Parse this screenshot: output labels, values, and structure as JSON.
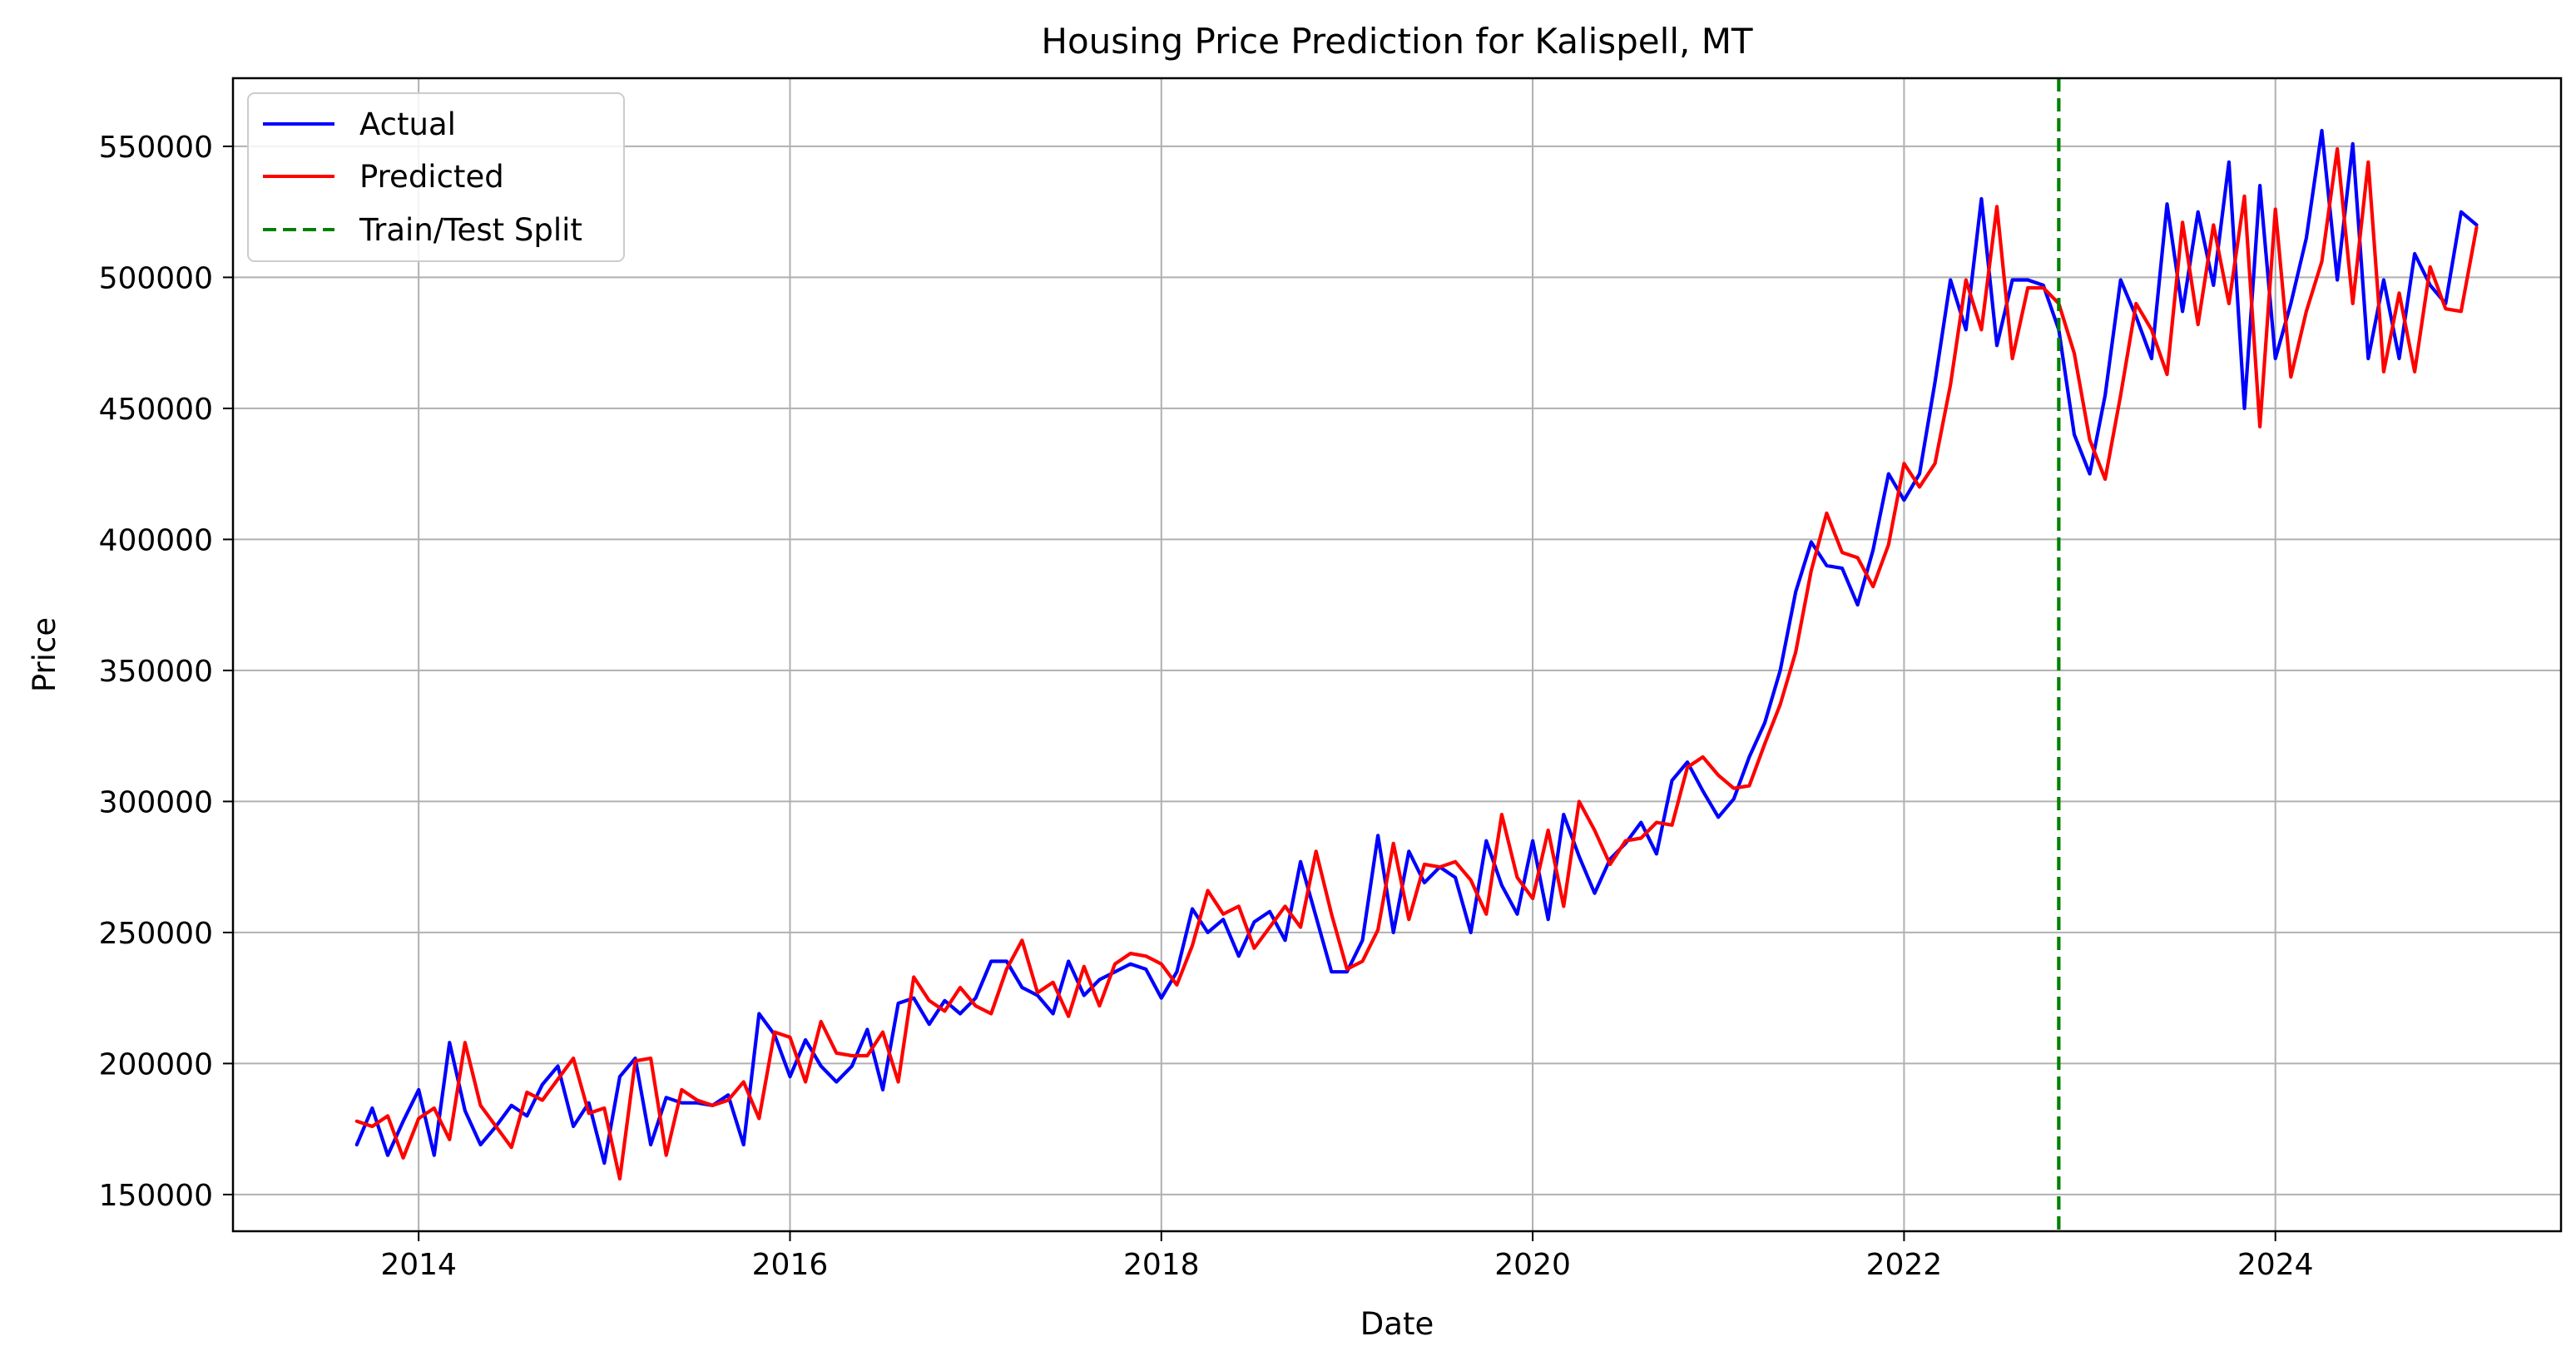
{
  "chart_data": {
    "type": "line",
    "title": "Housing Price Prediction for Kalispell, MT",
    "xlabel": "Date",
    "ylabel": "Price",
    "xlim": [
      "2013-01-01",
      "2025-07-15"
    ],
    "ylim": [
      136000,
      576000
    ],
    "grid": true,
    "legend_position": "top-left",
    "x_ticks": [
      "2014",
      "2016",
      "2018",
      "2020",
      "2022",
      "2024"
    ],
    "y_ticks": [
      150000,
      200000,
      250000,
      300000,
      350000,
      400000,
      450000,
      500000,
      550000
    ],
    "x": [
      "2013-09",
      "2013-10",
      "2013-11",
      "2013-12",
      "2014-01",
      "2014-02",
      "2014-03",
      "2014-04",
      "2014-05",
      "2014-06",
      "2014-07",
      "2014-08",
      "2014-09",
      "2014-10",
      "2014-11",
      "2014-12",
      "2015-01",
      "2015-02",
      "2015-03",
      "2015-04",
      "2015-05",
      "2015-06",
      "2015-07",
      "2015-08",
      "2015-09",
      "2015-10",
      "2015-11",
      "2015-12",
      "2016-01",
      "2016-02",
      "2016-03",
      "2016-04",
      "2016-05",
      "2016-06",
      "2016-07",
      "2016-08",
      "2016-09",
      "2016-10",
      "2016-11",
      "2016-12",
      "2017-01",
      "2017-02",
      "2017-03",
      "2017-04",
      "2017-05",
      "2017-06",
      "2017-07",
      "2017-08",
      "2017-09",
      "2017-10",
      "2017-11",
      "2017-12",
      "2018-01",
      "2018-02",
      "2018-03",
      "2018-04",
      "2018-05",
      "2018-06",
      "2018-07",
      "2018-08",
      "2018-09",
      "2018-10",
      "2018-11",
      "2018-12",
      "2019-01",
      "2019-02",
      "2019-03",
      "2019-04",
      "2019-05",
      "2019-06",
      "2019-07",
      "2019-08",
      "2019-09",
      "2019-10",
      "2019-11",
      "2019-12",
      "2020-01",
      "2020-02",
      "2020-03",
      "2020-04",
      "2020-05",
      "2020-06",
      "2020-07",
      "2020-08",
      "2020-09",
      "2020-10",
      "2020-11",
      "2020-12",
      "2021-01",
      "2021-02",
      "2021-03",
      "2021-04",
      "2021-05",
      "2021-06",
      "2021-07",
      "2021-08",
      "2021-09",
      "2021-10",
      "2021-11",
      "2021-12",
      "2022-01",
      "2022-02",
      "2022-03",
      "2022-04",
      "2022-05",
      "2022-06",
      "2022-07",
      "2022-08",
      "2022-09",
      "2022-10",
      "2022-11",
      "2022-12",
      "2023-01",
      "2023-02",
      "2023-03",
      "2023-04",
      "2023-05",
      "2023-06",
      "2023-07",
      "2023-08",
      "2023-09",
      "2023-10",
      "2023-11",
      "2023-12",
      "2024-01",
      "2024-02",
      "2024-03",
      "2024-04",
      "2024-05",
      "2024-06",
      "2024-07",
      "2024-08",
      "2024-09",
      "2024-10",
      "2024-11",
      "2024-12",
      "2025-01",
      "2025-02"
    ],
    "series": [
      {
        "name": "Actual",
        "color": "#0000ff",
        "values": [
          169000,
          183000,
          165000,
          178000,
          190000,
          165000,
          208000,
          182000,
          169000,
          176000,
          184000,
          180000,
          192000,
          199000,
          176000,
          185000,
          162000,
          195000,
          202000,
          169000,
          187000,
          185000,
          185000,
          184000,
          188000,
          169000,
          219000,
          211000,
          195000,
          209000,
          199000,
          193000,
          199000,
          213000,
          190000,
          223000,
          225000,
          215000,
          224000,
          219000,
          225000,
          239000,
          239000,
          229000,
          226000,
          219000,
          239000,
          226000,
          232000,
          235000,
          238000,
          236000,
          225000,
          235000,
          259000,
          250000,
          255000,
          241000,
          254000,
          258000,
          247000,
          277000,
          256000,
          235000,
          235000,
          247000,
          287000,
          250000,
          281000,
          269000,
          275000,
          271000,
          250000,
          285000,
          268000,
          257000,
          285000,
          255000,
          295000,
          279000,
          265000,
          278000,
          284000,
          292000,
          280000,
          308000,
          315000,
          304000,
          294000,
          301000,
          317000,
          330000,
          350000,
          380000,
          399000,
          390000,
          389000,
          375000,
          396000,
          425000,
          415000,
          425000,
          460000,
          499000,
          480000,
          530000,
          474000,
          499000,
          499000,
          497000,
          480000,
          440000,
          425000,
          455000,
          499000,
          485000,
          469000,
          528000,
          487000,
          525000,
          497000,
          544000,
          450000,
          535000,
          469000,
          490000,
          515000,
          556000,
          499000,
          551000,
          469000,
          499000,
          469000,
          509000,
          497000,
          490000,
          525000,
          520000
        ]
      },
      {
        "name": "Predicted",
        "color": "#ff0000",
        "values": [
          178000,
          176000,
          180000,
          164000,
          179000,
          183000,
          171000,
          208000,
          184000,
          176000,
          168000,
          189000,
          186000,
          194000,
          202000,
          181000,
          183000,
          156000,
          201000,
          202000,
          165000,
          190000,
          186000,
          184000,
          186000,
          193000,
          179000,
          212000,
          210000,
          193000,
          216000,
          204000,
          203000,
          203000,
          212000,
          193000,
          233000,
          224000,
          220000,
          229000,
          222000,
          219000,
          236000,
          247000,
          227000,
          231000,
          218000,
          237000,
          222000,
          238000,
          242000,
          241000,
          238000,
          230000,
          245000,
          266000,
          257000,
          260000,
          244000,
          252000,
          260000,
          252000,
          281000,
          257000,
          236000,
          239000,
          251000,
          284000,
          255000,
          276000,
          275000,
          277000,
          270000,
          257000,
          295000,
          271000,
          263000,
          289000,
          260000,
          300000,
          289000,
          276000,
          285000,
          286000,
          292000,
          291000,
          313000,
          317000,
          310000,
          305000,
          306000,
          322000,
          337000,
          357000,
          388000,
          410000,
          395000,
          393000,
          382000,
          398000,
          429000,
          420000,
          429000,
          459000,
          499000,
          480000,
          527000,
          469000,
          496000,
          496000,
          490000,
          471000,
          438000,
          423000,
          455000,
          490000,
          480000,
          463000,
          521000,
          482000,
          520000,
          490000,
          531000,
          443000,
          526000,
          462000,
          487000,
          506000,
          549000,
          490000,
          544000,
          464000,
          494000,
          464000,
          504000,
          488000,
          487000,
          519000
        ]
      }
    ],
    "annotations": [
      {
        "type": "vline",
        "name": "Train/Test Split",
        "x": "2022-11",
        "color": "#008000",
        "style": "dashed"
      }
    ]
  }
}
